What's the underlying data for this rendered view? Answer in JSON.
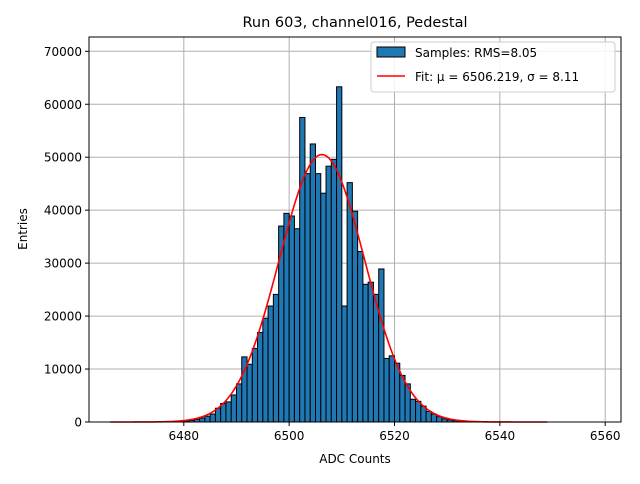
{
  "chart_data": {
    "type": "bar",
    "title": "Run 603, channel016, Pedestal",
    "xlabel": "ADC Counts",
    "ylabel": "Entries",
    "xlim": [
      6462,
      6563
    ],
    "ylim": [
      0,
      72700
    ],
    "grid": true,
    "legend_placement": "top-right",
    "x_ticks": [
      6480,
      6500,
      6520,
      6540,
      6560
    ],
    "y_ticks": [
      0,
      10000,
      20000,
      30000,
      40000,
      50000,
      60000,
      70000
    ],
    "bin_width": 1,
    "bins": [
      6479,
      6480,
      6481,
      6482,
      6483,
      6484,
      6485,
      6486,
      6487,
      6488,
      6489,
      6490,
      6491,
      6492,
      6493,
      6494,
      6495,
      6496,
      6497,
      6498,
      6499,
      6500,
      6501,
      6502,
      6503,
      6504,
      6505,
      6506,
      6507,
      6508,
      6509,
      6510,
      6511,
      6512,
      6513,
      6514,
      6515,
      6516,
      6517,
      6518,
      6519,
      6520,
      6521,
      6522,
      6523,
      6524,
      6525,
      6526,
      6527,
      6528,
      6529,
      6530,
      6531,
      6532,
      6533,
      6534
    ],
    "values": [
      100,
      200,
      300,
      500,
      750,
      1100,
      1500,
      2600,
      3500,
      3800,
      5100,
      7200,
      12300,
      10900,
      13900,
      16900,
      19600,
      21900,
      24100,
      37000,
      39400,
      38900,
      36500,
      57500,
      46900,
      52500,
      46900,
      43200,
      48300,
      49600,
      63300,
      21900,
      45200,
      39800,
      32200,
      26000,
      26400,
      24100,
      28900,
      12000,
      12500,
      11100,
      8800,
      7200,
      4300,
      3900,
      3000,
      2000,
      1500,
      1000,
      600,
      400,
      250,
      150,
      80,
      40
    ],
    "bar_color": "#1f77b4",
    "fit": {
      "mu": 6506.219,
      "sigma": 8.11,
      "amplitude": 50500,
      "x_range": [
        6466,
        6549
      ],
      "color": "#ff0000"
    },
    "legend": [
      {
        "label": "Samples: RMS=8.05",
        "kind": "patch",
        "color": "#1f77b4"
      },
      {
        "label": "Fit: μ = 6506.219, σ = 8.11",
        "kind": "line",
        "color": "#ff0000"
      }
    ]
  }
}
